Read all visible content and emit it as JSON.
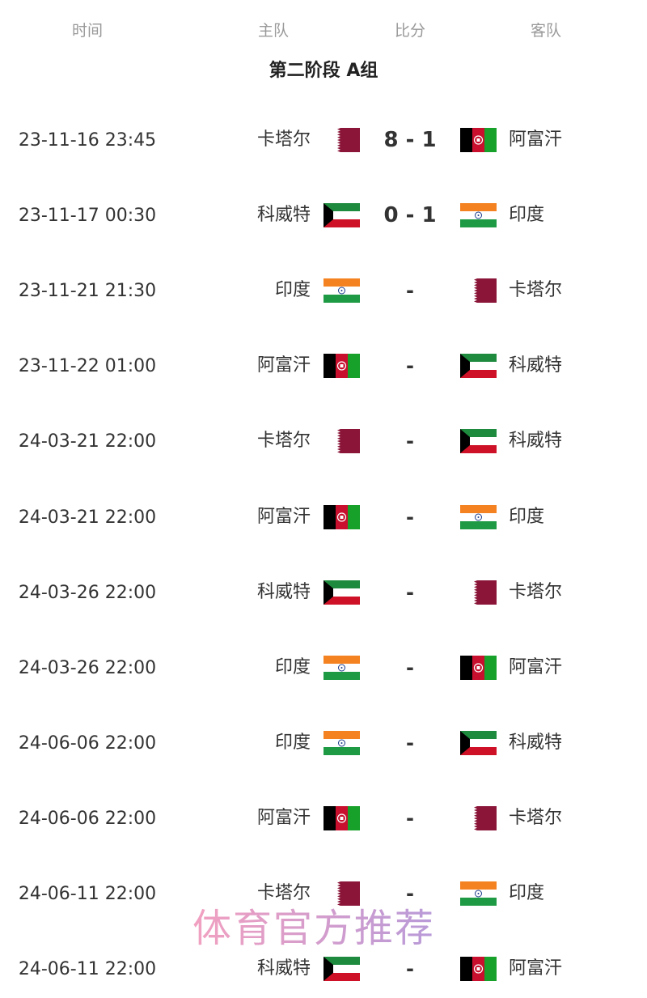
{
  "header": {
    "time": "时间",
    "home": "主队",
    "score": "比分",
    "away": "客队"
  },
  "title": "第二阶段 A组",
  "matches": [
    {
      "time": "23-11-16 23:45",
      "home": "卡塔尔",
      "home_flag": "qatar",
      "score": "8 - 1",
      "away": "阿富汗",
      "away_flag": "afghanistan"
    },
    {
      "time": "23-11-17 00:30",
      "home": "科威特",
      "home_flag": "kuwait",
      "score": "0 - 1",
      "away": "印度",
      "away_flag": "india"
    },
    {
      "time": "23-11-21 21:30",
      "home": "印度",
      "home_flag": "india",
      "score": "-",
      "away": "卡塔尔",
      "away_flag": "qatar"
    },
    {
      "time": "23-11-22 01:00",
      "home": "阿富汗",
      "home_flag": "afghanistan",
      "score": "-",
      "away": "科威特",
      "away_flag": "kuwait"
    },
    {
      "time": "24-03-21 22:00",
      "home": "卡塔尔",
      "home_flag": "qatar",
      "score": "-",
      "away": "科威特",
      "away_flag": "kuwait"
    },
    {
      "time": "24-03-21 22:00",
      "home": "阿富汗",
      "home_flag": "afghanistan",
      "score": "-",
      "away": "印度",
      "away_flag": "india"
    },
    {
      "time": "24-03-26 22:00",
      "home": "科威特",
      "home_flag": "kuwait",
      "score": "-",
      "away": "卡塔尔",
      "away_flag": "qatar"
    },
    {
      "time": "24-03-26 22:00",
      "home": "印度",
      "home_flag": "india",
      "score": "-",
      "away": "阿富汗",
      "away_flag": "afghanistan"
    },
    {
      "time": "24-06-06 22:00",
      "home": "印度",
      "home_flag": "india",
      "score": "-",
      "away": "科威特",
      "away_flag": "kuwait"
    },
    {
      "time": "24-06-06 22:00",
      "home": "阿富汗",
      "home_flag": "afghanistan",
      "score": "-",
      "away": "卡塔尔",
      "away_flag": "qatar"
    },
    {
      "time": "24-06-11 22:00",
      "home": "卡塔尔",
      "home_flag": "qatar",
      "score": "-",
      "away": "印度",
      "away_flag": "india"
    },
    {
      "time": "24-06-11 22:00",
      "home": "科威特",
      "home_flag": "kuwait",
      "score": "-",
      "away": "阿富汗",
      "away_flag": "afghanistan"
    }
  ],
  "watermark": "体育官方推荐"
}
